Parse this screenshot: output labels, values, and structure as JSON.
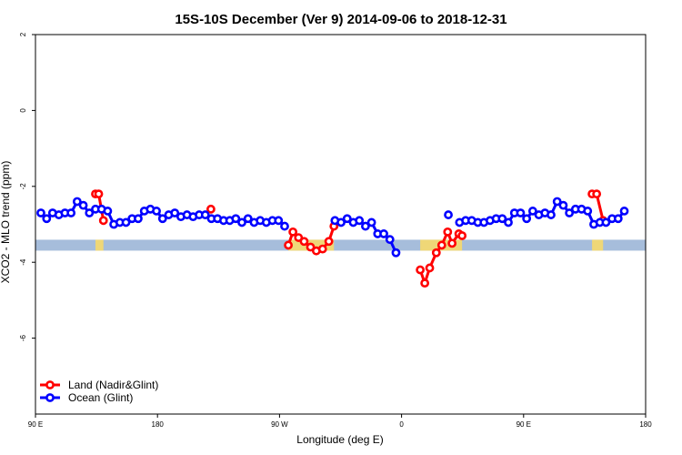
{
  "chart_data": {
    "type": "line",
    "title": "15S-10S December (Ver 9)   2014-09-06 to 2018-12-31",
    "xlabel": "Longitude (deg E)",
    "ylabel": "XCO2 - MLO trend (ppm)",
    "xlim": [
      90,
      450
    ],
    "ylim": [
      -8,
      2
    ],
    "x_ticks": [
      {
        "value": 90,
        "label": "90 E"
      },
      {
        "value": 162,
        "label": "180"
      },
      {
        "value": 234,
        "label": "90 W"
      },
      {
        "value": 306,
        "label": "0"
      },
      {
        "value": 378,
        "label": "90 E"
      },
      {
        "value": 450,
        "label": "180"
      }
    ],
    "y_ticks": [
      {
        "value": 2,
        "label": "2"
      },
      {
        "value": 0,
        "label": "0"
      },
      {
        "value": -2,
        "label": "-2"
      },
      {
        "value": -4,
        "label": "-4"
      },
      {
        "value": -6,
        "label": "-6"
      }
    ],
    "legend_position": "bottom-left",
    "series": [
      {
        "name": "Land (Nadir&Glint)",
        "color": "#ff0000",
        "segments": [
          [
            [
              125.4,
              -2.2
            ],
            [
              127.3,
              -2.2
            ],
            [
              130.1,
              -2.9
            ]
          ],
          [
            [
              193.5,
              -2.6
            ]
          ],
          [
            [
              239.2,
              -3.55
            ],
            [
              241.9,
              -3.2
            ],
            [
              245.2,
              -3.35
            ],
            [
              248.5,
              -3.45
            ],
            [
              252.3,
              -3.6
            ],
            [
              255.7,
              -3.7
            ],
            [
              259.4,
              -3.65
            ],
            [
              263.1,
              -3.45
            ],
            [
              266.1,
              -3.05
            ]
          ],
          [
            [
              317.0,
              -4.2
            ],
            [
              319.7,
              -4.55
            ],
            [
              322.6,
              -4.15
            ],
            [
              326.5,
              -3.75
            ],
            [
              329.7,
              -3.55
            ],
            [
              333.2,
              -3.2
            ],
            [
              335.8,
              -3.5
            ],
            [
              339.8,
              -3.25
            ],
            [
              341.7,
              -3.3
            ]
          ],
          [
            [
              418.4,
              -2.2
            ],
            [
              421.1,
              -2.2
            ],
            [
              424.9,
              -2.9
            ]
          ]
        ]
      },
      {
        "name": "Ocean (Glint)",
        "color": "#0000ff",
        "segments": [
          [
            [
              93.2,
              -2.7
            ],
            [
              96.6,
              -2.85
            ],
            [
              100.1,
              -2.7
            ],
            [
              103.8,
              -2.75
            ],
            [
              107.4,
              -2.7
            ],
            [
              111.0,
              -2.7
            ],
            [
              114.6,
              -2.4
            ],
            [
              118.2,
              -2.5
            ],
            [
              121.8,
              -2.7
            ],
            [
              125.4,
              -2.6
            ],
            [
              129.0,
              -2.6
            ],
            [
              132.6,
              -2.65
            ],
            [
              136.2,
              -3.0
            ],
            [
              139.8,
              -2.95
            ],
            [
              143.4,
              -2.95
            ],
            [
              147.0,
              -2.85
            ],
            [
              150.6,
              -2.85
            ],
            [
              154.2,
              -2.65
            ],
            [
              157.8,
              -2.6
            ],
            [
              161.4,
              -2.65
            ],
            [
              165.0,
              -2.85
            ],
            [
              168.6,
              -2.75
            ],
            [
              172.2,
              -2.7
            ],
            [
              175.8,
              -2.8
            ],
            [
              179.4,
              -2.75
            ],
            [
              183.0,
              -2.8
            ],
            [
              186.6,
              -2.75
            ],
            [
              190.2,
              -2.75
            ],
            [
              193.8,
              -2.85
            ],
            [
              197.4,
              -2.85
            ],
            [
              201.0,
              -2.9
            ],
            [
              204.6,
              -2.9
            ],
            [
              208.2,
              -2.85
            ],
            [
              211.8,
              -2.95
            ],
            [
              215.4,
              -2.85
            ],
            [
              219.0,
              -2.95
            ],
            [
              222.6,
              -2.9
            ],
            [
              226.2,
              -2.95
            ],
            [
              229.8,
              -2.9
            ],
            [
              233.4,
              -2.9
            ],
            [
              237.0,
              -3.05
            ]
          ],
          [
            [
              266.7,
              -2.9
            ],
            [
              270.3,
              -2.95
            ],
            [
              273.9,
              -2.85
            ],
            [
              277.5,
              -2.95
            ],
            [
              281.1,
              -2.9
            ],
            [
              284.7,
              -3.05
            ],
            [
              288.3,
              -2.95
            ],
            [
              291.9,
              -3.25
            ],
            [
              295.5,
              -3.25
            ],
            [
              299.1,
              -3.4
            ],
            [
              302.7,
              -3.75
            ]
          ],
          [
            [
              333.6,
              -2.75
            ]
          ],
          [
            [
              340.2,
              -2.95
            ],
            [
              343.8,
              -2.9
            ],
            [
              347.4,
              -2.9
            ],
            [
              351.0,
              -2.95
            ],
            [
              354.6,
              -2.95
            ],
            [
              358.2,
              -2.9
            ],
            [
              361.8,
              -2.85
            ],
            [
              365.4,
              -2.85
            ],
            [
              369.0,
              -2.95
            ],
            [
              372.6,
              -2.7
            ],
            [
              376.2,
              -2.7
            ],
            [
              379.8,
              -2.85
            ],
            [
              383.4,
              -2.65
            ],
            [
              387.0,
              -2.75
            ],
            [
              390.6,
              -2.7
            ],
            [
              394.2,
              -2.75
            ],
            [
              397.8,
              -2.4
            ],
            [
              401.4,
              -2.5
            ],
            [
              405.0,
              -2.7
            ],
            [
              408.6,
              -2.6
            ],
            [
              412.2,
              -2.6
            ],
            [
              415.8,
              -2.65
            ],
            [
              419.4,
              -3.0
            ],
            [
              423.0,
              -2.95
            ],
            [
              426.6,
              -2.95
            ],
            [
              430.2,
              -2.85
            ],
            [
              433.8,
              -2.85
            ],
            [
              437.4,
              -2.65
            ]
          ]
        ]
      }
    ],
    "baseline_band": {
      "y": -3.55,
      "color": "#a6bddb"
    },
    "land_fill_color": "#f7d96b"
  }
}
